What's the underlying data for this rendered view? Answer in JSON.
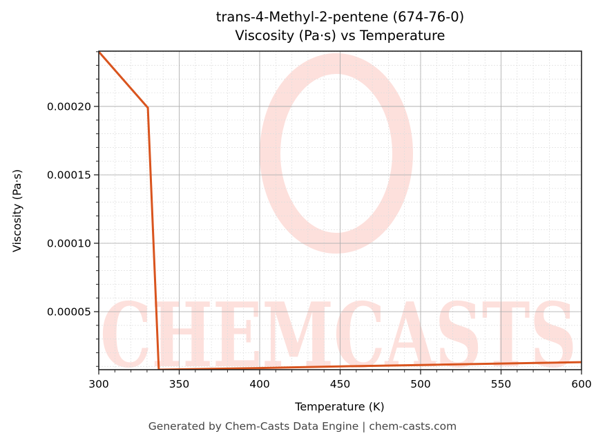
{
  "header": {
    "title_line1": "trans-4-Methyl-2-pentene (674-76-0)",
    "title_line2": "Viscosity (Pa·s) vs Temperature"
  },
  "footer": {
    "text": "Generated by Chem-Casts Data Engine | chem-casts.com"
  },
  "watermark": {
    "text": "CHEMCASTS",
    "color": "#fde0dc"
  },
  "colors": {
    "line": "#d9541e",
    "axis": "#222222",
    "grid_major": "#b0b0b0",
    "grid_minor": "#dddddd"
  },
  "chart_data": {
    "type": "line",
    "title": "trans-4-Methyl-2-pentene (674-76-0)\nViscosity (Pa·s) vs Temperature",
    "xlabel": "Temperature (K)",
    "ylabel": "Viscosity (Pa·s)",
    "xlim": [
      300,
      600
    ],
    "ylim": [
      7.6e-06,
      0.0002404
    ],
    "x_ticks": [
      300,
      350,
      400,
      450,
      500,
      550,
      600
    ],
    "x_tick_labels": [
      "300",
      "350",
      "400",
      "450",
      "500",
      "550",
      "600"
    ],
    "y_ticks": [
      5e-05,
      0.0001,
      0.00015,
      0.0002
    ],
    "y_tick_labels": [
      "0.00005",
      "0.00010",
      "0.00015",
      "0.00020"
    ],
    "grid": {
      "major": true,
      "minor": true
    },
    "legend": null,
    "series": [
      {
        "name": "Viscosity",
        "color": "#d9541e",
        "x": [
          300,
          330.5,
          337.3,
          400,
          450,
          500,
          550,
          600
        ],
        "y": [
          0.00024,
          0.000199,
          7.6e-06,
          8.8e-06,
          1e-05,
          1.1e-05,
          1.21e-05,
          1.31e-05
        ]
      }
    ]
  }
}
